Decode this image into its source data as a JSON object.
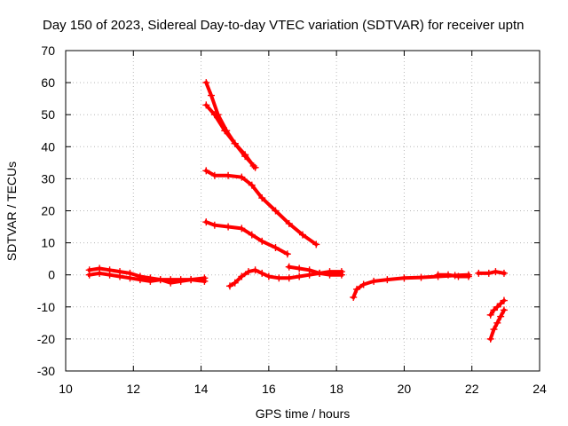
{
  "chart_data": {
    "type": "scatter",
    "title": "Day 150 of 2023, Sidereal Day-to-day VTEC variation (SDTVAR) for receiver uptn",
    "xlabel": "GPS time / hours",
    "ylabel": "SDTVAR / TECUs",
    "xlim": [
      10,
      24
    ],
    "ylim": [
      -30,
      70
    ],
    "xticks": [
      "10",
      "12",
      "14",
      "16",
      "18",
      "20",
      "22",
      "24"
    ],
    "yticks": [
      "-30",
      "-20",
      "-10",
      "0",
      "10",
      "20",
      "30",
      "40",
      "50",
      "60",
      "70"
    ],
    "grid": true,
    "marker": "plus",
    "color": "#ff0000",
    "series": [
      {
        "x": [
          10.7,
          11.0,
          11.3,
          11.6,
          11.9,
          12.2,
          12.5,
          12.8,
          13.1,
          13.4,
          13.7,
          14.1
        ],
        "y": [
          1.5,
          2.0,
          1.5,
          1.0,
          0.5,
          -0.5,
          -1.0,
          -1.5,
          -1.5,
          -1.5,
          -1.5,
          -2.0
        ]
      },
      {
        "x": [
          10.7,
          11.0,
          11.3,
          11.6,
          11.9,
          12.2,
          12.5,
          12.8,
          13.1,
          13.4,
          13.7,
          14.1
        ],
        "y": [
          0.0,
          0.5,
          0.0,
          -0.5,
          -1.0,
          -1.5,
          -2.0,
          -1.5,
          -2.5,
          -2.0,
          -1.5,
          -1.0
        ]
      },
      {
        "x": [
          14.15,
          14.3,
          14.5,
          14.75,
          15.0,
          15.3,
          15.6
        ],
        "y": [
          60,
          56,
          50,
          45,
          41,
          37,
          33.5
        ]
      },
      {
        "x": [
          14.15,
          14.4,
          14.7,
          15.0,
          15.3,
          15.55
        ],
        "y": [
          53,
          50,
          45,
          41,
          37.5,
          34
        ]
      },
      {
        "x": [
          14.15,
          14.4,
          14.8,
          15.2,
          15.5,
          15.8,
          16.2,
          16.6,
          17.0,
          17.4
        ],
        "y": [
          32.5,
          31,
          31,
          30.5,
          28,
          24,
          20,
          16,
          12.5,
          9.5
        ]
      },
      {
        "x": [
          14.15,
          14.4,
          14.8,
          15.2,
          15.5,
          15.8,
          16.2,
          16.55
        ],
        "y": [
          16.5,
          15.5,
          15,
          14.5,
          12.5,
          10.5,
          8.5,
          6.5
        ]
      },
      {
        "x": [
          14.85,
          15.0,
          15.2,
          15.4,
          15.6,
          15.8,
          16.0,
          16.3,
          16.6,
          16.9,
          17.2,
          17.5,
          17.8,
          18.15
        ],
        "y": [
          -3.5,
          -2.5,
          -0.5,
          1.0,
          1.5,
          0.5,
          -0.5,
          -1.0,
          -1.0,
          -0.5,
          0.0,
          0.5,
          1.0,
          1.0
        ]
      },
      {
        "x": [
          16.6,
          16.9,
          17.2,
          17.5,
          17.8,
          18.15
        ],
        "y": [
          2.5,
          2.0,
          1.5,
          0.5,
          0.0,
          0.0
        ]
      },
      {
        "x": [
          18.5,
          18.6,
          18.8,
          19.1,
          19.5,
          20.0,
          20.5,
          21.0,
          21.5,
          21.9
        ],
        "y": [
          -7.0,
          -4.5,
          -3.0,
          -2.0,
          -1.5,
          -1.0,
          -0.8,
          -0.5,
          -0.2,
          0.0
        ]
      },
      {
        "x": [
          21.0,
          21.3,
          21.6,
          21.9
        ],
        "y": [
          0.0,
          0.0,
          -0.5,
          -0.5
        ]
      },
      {
        "x": [
          22.2,
          22.5,
          22.7,
          22.95
        ],
        "y": [
          0.5,
          0.5,
          1.0,
          0.5
        ]
      },
      {
        "x": [
          22.55,
          22.65,
          22.75,
          22.85,
          22.95
        ],
        "y": [
          -12.5,
          -11,
          -10,
          -9,
          -8
        ]
      },
      {
        "x": [
          22.55,
          22.65,
          22.75,
          22.85,
          22.95
        ],
        "y": [
          -20,
          -17,
          -15,
          -13,
          -11
        ]
      }
    ]
  }
}
